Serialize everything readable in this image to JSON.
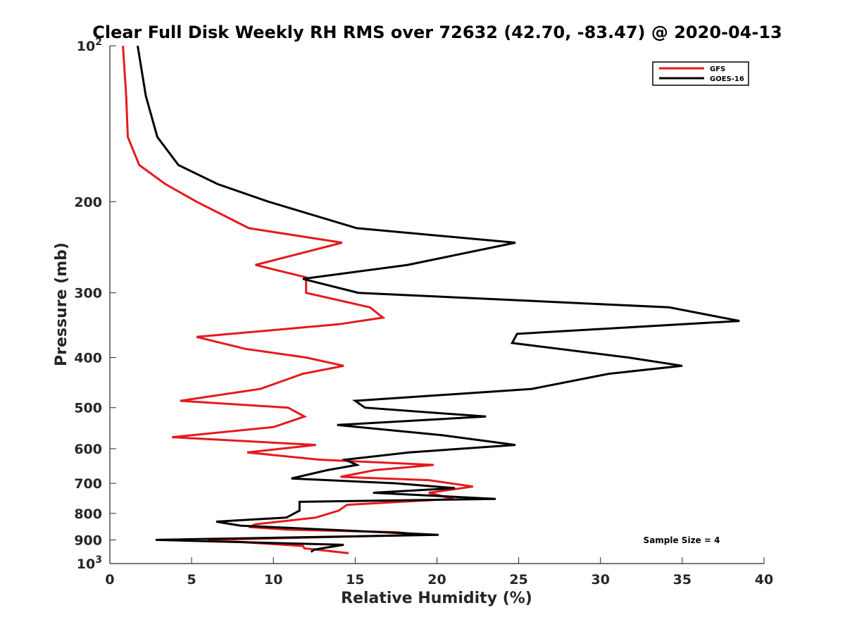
{
  "chart_data": {
    "type": "line",
    "title": "Clear Full Disk Weekly RH RMS over 72632 (42.70, -83.47) @ 2020-04-13",
    "xlabel": "Relative Humidity (%)",
    "ylabel": "Pressure (mb)",
    "xlim": [
      0,
      40
    ],
    "ylim": [
      100,
      1000
    ],
    "y_scale": "log",
    "y_reversed": true,
    "grid": false,
    "legend_position": "top-right",
    "x_ticks": [
      "0",
      "5",
      "10",
      "15",
      "20",
      "25",
      "30",
      "35",
      "40"
    ],
    "y_ticks": [
      {
        "value": 100,
        "base": "10",
        "exp": "2"
      },
      {
        "value": 200,
        "label": "200"
      },
      {
        "value": 300,
        "label": "300"
      },
      {
        "value": 400,
        "label": "400"
      },
      {
        "value": 500,
        "label": "500"
      },
      {
        "value": 600,
        "label": "600"
      },
      {
        "value": 700,
        "label": "700"
      },
      {
        "value": 800,
        "label": "800"
      },
      {
        "value": 900,
        "label": "900"
      },
      {
        "value": 1000,
        "base": "10",
        "exp": "3"
      }
    ],
    "series": [
      {
        "name": "GFS",
        "color": "#e41a1c",
        "points": [
          [
            0.8,
            100
          ],
          [
            1.0,
            125
          ],
          [
            1.1,
            150
          ],
          [
            1.8,
            170
          ],
          [
            3.4,
            185
          ],
          [
            5.3,
            200
          ],
          [
            8.5,
            225
          ],
          [
            14.2,
            240
          ],
          [
            8.9,
            265
          ],
          [
            12.0,
            280
          ],
          [
            12.0,
            300
          ],
          [
            15.9,
            320
          ],
          [
            16.7,
            335
          ],
          [
            14.0,
            345
          ],
          [
            5.3,
            365
          ],
          [
            8.3,
            385
          ],
          [
            12.0,
            400
          ],
          [
            14.3,
            415
          ],
          [
            11.8,
            430
          ],
          [
            9.2,
            460
          ],
          [
            4.3,
            485
          ],
          [
            10.9,
            500
          ],
          [
            11.9,
            520
          ],
          [
            10.0,
            545
          ],
          [
            3.8,
            570
          ],
          [
            12.6,
            590
          ],
          [
            8.4,
            610
          ],
          [
            12.8,
            630
          ],
          [
            19.8,
            645
          ],
          [
            16.2,
            660
          ],
          [
            14.1,
            680
          ],
          [
            19.5,
            690
          ],
          [
            22.2,
            710
          ],
          [
            19.5,
            730
          ],
          [
            21.0,
            750
          ],
          [
            14.5,
            770
          ],
          [
            14.0,
            790
          ],
          [
            12.6,
            815
          ],
          [
            8.9,
            840
          ],
          [
            8.5,
            850
          ],
          [
            10.9,
            860
          ],
          [
            17.5,
            870
          ],
          [
            19.2,
            880
          ],
          [
            6.0,
            900
          ],
          [
            11.8,
            925
          ],
          [
            11.9,
            935
          ],
          [
            14.6,
            955
          ]
        ]
      },
      {
        "name": "GOES-16",
        "color": "#000000",
        "points": [
          [
            1.7,
            100
          ],
          [
            2.2,
            125
          ],
          [
            2.9,
            150
          ],
          [
            4.2,
            170
          ],
          [
            6.6,
            185
          ],
          [
            9.7,
            200
          ],
          [
            15.1,
            225
          ],
          [
            24.8,
            240
          ],
          [
            18.2,
            265
          ],
          [
            11.8,
            282
          ],
          [
            15.2,
            300
          ],
          [
            34.2,
            320
          ],
          [
            38.5,
            340
          ],
          [
            24.9,
            360
          ],
          [
            24.6,
            375
          ],
          [
            31.7,
            400
          ],
          [
            35.0,
            415
          ],
          [
            30.5,
            430
          ],
          [
            25.8,
            460
          ],
          [
            15.0,
            485
          ],
          [
            15.6,
            500
          ],
          [
            23.0,
            520
          ],
          [
            13.9,
            540
          ],
          [
            20.3,
            565
          ],
          [
            24.8,
            590
          ],
          [
            18.3,
            610
          ],
          [
            14.4,
            630
          ],
          [
            15.1,
            645
          ],
          [
            13.3,
            660
          ],
          [
            11.1,
            685
          ],
          [
            17.5,
            700
          ],
          [
            21.1,
            715
          ],
          [
            16.1,
            730
          ],
          [
            23.6,
            750
          ],
          [
            11.6,
            760
          ],
          [
            11.6,
            790
          ],
          [
            10.8,
            815
          ],
          [
            6.5,
            830
          ],
          [
            8.0,
            845
          ],
          [
            20.1,
            880
          ],
          [
            2.8,
            900
          ],
          [
            14.3,
            920
          ],
          [
            12.5,
            940
          ],
          [
            12.3,
            950
          ]
        ]
      }
    ],
    "annotations": [
      "Sample Size = 4"
    ]
  }
}
